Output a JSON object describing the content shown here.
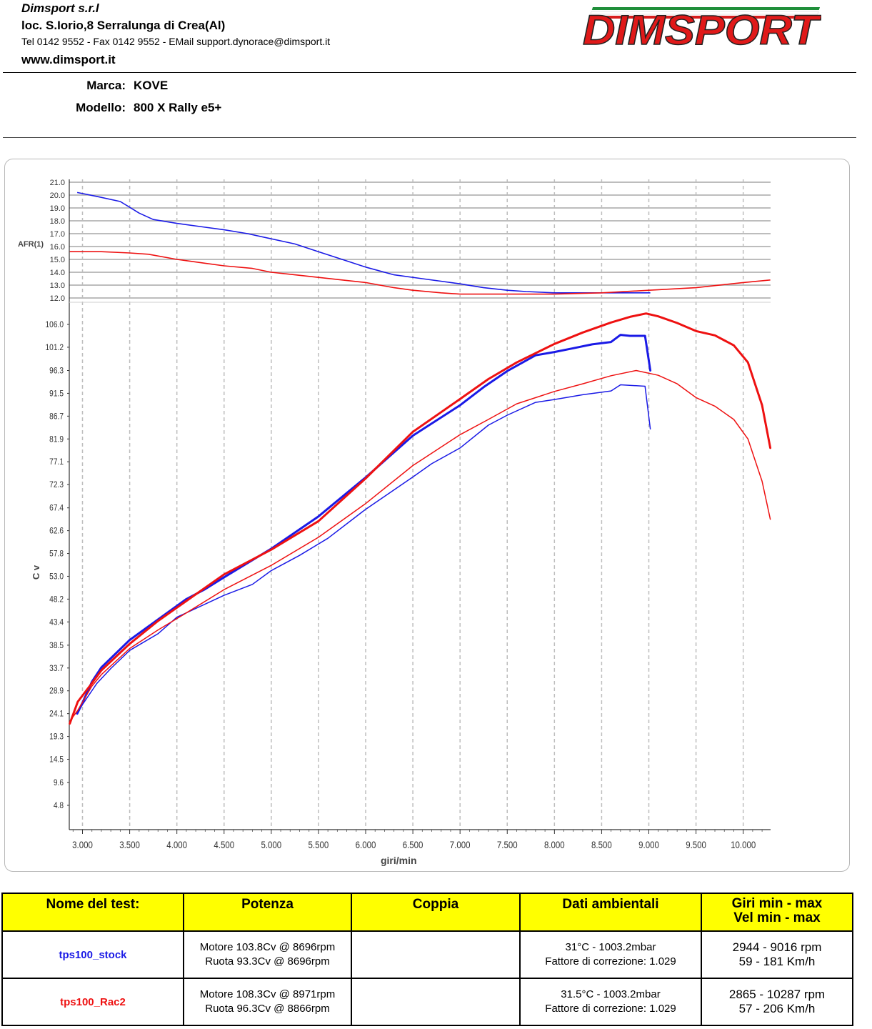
{
  "header": {
    "company": "Dimsport s.r.l",
    "address": "loc. S.Iorio,8 Serralunga di Crea(Al)",
    "contacts": "Tel 0142 9552 - Fax 0142 9552 - EMail support.dynorace@dimsport.it",
    "website": "www.dimsport.it",
    "logo_text": "DIMSPORT"
  },
  "vehicle": {
    "marca_label": "Marca:",
    "marca": "KOVE",
    "modello_label": "Modello:",
    "modello": "800 X Rally e5+"
  },
  "colors": {
    "stock": "#1a1ae6",
    "rac2": "#ee1111",
    "grid": "#bdbdbd",
    "table_header": "#ffff00"
  },
  "chart_data": {
    "type": "line",
    "xlabel": "giri/min",
    "x_ticks": [
      "3.000",
      "3.500",
      "4.000",
      "4.500",
      "5.000",
      "5.500",
      "6.000",
      "6.500",
      "7.000",
      "7.500",
      "8.000",
      "8.500",
      "9.000",
      "9.500",
      "10.000"
    ],
    "x_tick_values": [
      3000,
      3500,
      4000,
      4500,
      5000,
      5500,
      6000,
      6500,
      7000,
      7500,
      8000,
      8500,
      9000,
      9500,
      10000
    ],
    "xlim": [
      2860,
      10290
    ],
    "afr_panel": {
      "ylabel": "AFR(1)",
      "ylim": [
        12.0,
        21.0
      ],
      "y_ticks": [
        "21.0",
        "20.0",
        "19.0",
        "18.0",
        "17.0",
        "16.0",
        "15.0",
        "14.0",
        "13.0",
        "12.0"
      ],
      "y_tick_values": [
        21,
        20,
        19,
        18,
        17,
        16,
        15,
        14,
        13,
        12
      ],
      "series": [
        {
          "name": "tps100_stock",
          "color": "#1a1ae6",
          "points": [
            [
              2944,
              20.2
            ],
            [
              3150,
              19.9
            ],
            [
              3400,
              19.5
            ],
            [
              3600,
              18.6
            ],
            [
              3750,
              18.1
            ],
            [
              4000,
              17.8
            ],
            [
              4300,
              17.5
            ],
            [
              4500,
              17.3
            ],
            [
              4750,
              17.0
            ],
            [
              5000,
              16.6
            ],
            [
              5250,
              16.2
            ],
            [
              5500,
              15.6
            ],
            [
              5750,
              15.0
            ],
            [
              6000,
              14.4
            ],
            [
              6300,
              13.8
            ],
            [
              6600,
              13.5
            ],
            [
              7000,
              13.1
            ],
            [
              7250,
              12.8
            ],
            [
              7500,
              12.6
            ],
            [
              7700,
              12.5
            ],
            [
              8000,
              12.4
            ],
            [
              9016,
              12.4
            ]
          ]
        },
        {
          "name": "tps100_Rac2",
          "color": "#ee1111",
          "points": [
            [
              2865,
              15.6
            ],
            [
              3200,
              15.6
            ],
            [
              3500,
              15.5
            ],
            [
              3700,
              15.4
            ],
            [
              4000,
              15.0
            ],
            [
              4300,
              14.7
            ],
            [
              4500,
              14.5
            ],
            [
              4800,
              14.3
            ],
            [
              5000,
              14.0
            ],
            [
              5250,
              13.8
            ],
            [
              5500,
              13.6
            ],
            [
              5750,
              13.4
            ],
            [
              6000,
              13.2
            ],
            [
              6300,
              12.8
            ],
            [
              6500,
              12.6
            ],
            [
              6800,
              12.4
            ],
            [
              7000,
              12.3
            ],
            [
              7500,
              12.3
            ],
            [
              8000,
              12.3
            ],
            [
              8500,
              12.4
            ],
            [
              9000,
              12.6
            ],
            [
              9500,
              12.8
            ],
            [
              10000,
              13.2
            ],
            [
              10287,
              13.4
            ]
          ]
        }
      ]
    },
    "power_panel": {
      "ylabel": "C v",
      "ylim": [
        0,
        108.3
      ],
      "y_ticks": [
        "106.0",
        "101.2",
        "96.3",
        "91.5",
        "86.7",
        "81.9",
        "77.1",
        "72.3",
        "67.4",
        "62.6",
        "57.8",
        "53.0",
        "48.2",
        "43.4",
        "38.5",
        "33.7",
        "28.9",
        "24.1",
        "19.3",
        "14.5",
        "9.6",
        "4.8"
      ],
      "y_tick_values": [
        106.0,
        101.2,
        96.3,
        91.5,
        86.7,
        81.9,
        77.1,
        72.3,
        67.4,
        62.6,
        57.8,
        53.0,
        48.2,
        43.4,
        38.5,
        33.7,
        28.9,
        24.1,
        19.3,
        14.5,
        9.6,
        4.8
      ],
      "series": [
        {
          "name": "tps100_stock Motore",
          "color": "#1a1ae6",
          "width": 3,
          "points": [
            [
              2944,
              24.1
            ],
            [
              3000,
              26.4
            ],
            [
              3100,
              30.8
            ],
            [
              3200,
              33.8
            ],
            [
              3500,
              39.6
            ],
            [
              3800,
              43.9
            ],
            [
              4100,
              48.2
            ],
            [
              4300,
              50.3
            ],
            [
              4500,
              52.8
            ],
            [
              5000,
              58.8
            ],
            [
              5500,
              65.6
            ],
            [
              6000,
              73.8
            ],
            [
              6500,
              82.6
            ],
            [
              7000,
              89.0
            ],
            [
              7250,
              92.8
            ],
            [
              7500,
              96.2
            ],
            [
              7800,
              99.5
            ],
            [
              8000,
              100.2
            ],
            [
              8200,
              101.0
            ],
            [
              8400,
              101.8
            ],
            [
              8600,
              102.3
            ],
            [
              8700,
              103.8
            ],
            [
              8800,
              103.6
            ],
            [
              8960,
              103.6
            ],
            [
              9016,
              96.3
            ]
          ]
        },
        {
          "name": "tps100_stock Ruota",
          "color": "#1a1ae6",
          "width": 1.5,
          "points": [
            [
              2944,
              24.1
            ],
            [
              3000,
              26.0
            ],
            [
              3150,
              30.4
            ],
            [
              3300,
              33.6
            ],
            [
              3500,
              37.4
            ],
            [
              3800,
              40.9
            ],
            [
              4000,
              44.4
            ],
            [
              4500,
              49.0
            ],
            [
              4800,
              51.3
            ],
            [
              5000,
              54.2
            ],
            [
              5300,
              57.4
            ],
            [
              5600,
              61.0
            ],
            [
              6000,
              67.1
            ],
            [
              6500,
              73.9
            ],
            [
              6700,
              76.7
            ],
            [
              7000,
              80.0
            ],
            [
              7300,
              84.8
            ],
            [
              7500,
              86.9
            ],
            [
              7800,
              89.6
            ],
            [
              8000,
              90.2
            ],
            [
              8300,
              91.2
            ],
            [
              8600,
              92.0
            ],
            [
              8700,
              93.3
            ],
            [
              8960,
              93.0
            ],
            [
              9016,
              84.0
            ]
          ]
        },
        {
          "name": "tps100_Rac2 Motore",
          "color": "#ee1111",
          "width": 3,
          "points": [
            [
              2865,
              22.0
            ],
            [
              2950,
              26.6
            ],
            [
              3100,
              30.5
            ],
            [
              3200,
              33.2
            ],
            [
              3500,
              38.8
            ],
            [
              3800,
              43.6
            ],
            [
              4100,
              47.8
            ],
            [
              4500,
              53.4
            ],
            [
              5000,
              58.6
            ],
            [
              5500,
              64.6
            ],
            [
              6000,
              73.6
            ],
            [
              6500,
              83.4
            ],
            [
              7000,
              90.3
            ],
            [
              7300,
              94.5
            ],
            [
              7600,
              98.0
            ],
            [
              8000,
              101.9
            ],
            [
              8300,
              104.3
            ],
            [
              8600,
              106.4
            ],
            [
              8800,
              107.6
            ],
            [
              8971,
              108.3
            ],
            [
              9100,
              107.7
            ],
            [
              9300,
              106.3
            ],
            [
              9500,
              104.6
            ],
            [
              9700,
              103.7
            ],
            [
              9900,
              101.6
            ],
            [
              10050,
              98.0
            ],
            [
              10200,
              89.0
            ],
            [
              10287,
              80.0
            ]
          ]
        },
        {
          "name": "tps100_Rac2 Ruota",
          "color": "#ee1111",
          "width": 1.5,
          "points": [
            [
              2865,
              22.5
            ],
            [
              2950,
              24.8
            ],
            [
              3100,
              29.9
            ],
            [
              3200,
              32.3
            ],
            [
              3500,
              37.8
            ],
            [
              3800,
              41.7
            ],
            [
              4100,
              45.3
            ],
            [
              4500,
              50.2
            ],
            [
              5000,
              55.3
            ],
            [
              5500,
              61.2
            ],
            [
              6000,
              68.3
            ],
            [
              6500,
              76.3
            ],
            [
              7000,
              82.8
            ],
            [
              7300,
              86.0
            ],
            [
              7600,
              89.3
            ],
            [
              8000,
              91.9
            ],
            [
              8300,
              93.5
            ],
            [
              8600,
              95.2
            ],
            [
              8866,
              96.3
            ],
            [
              9100,
              95.3
            ],
            [
              9300,
              93.5
            ],
            [
              9500,
              90.6
            ],
            [
              9700,
              88.8
            ],
            [
              9900,
              86.0
            ],
            [
              10050,
              81.9
            ],
            [
              10200,
              73.0
            ],
            [
              10287,
              65.0
            ]
          ]
        }
      ]
    }
  },
  "table": {
    "headers": [
      "Nome del test:",
      "Potenza",
      "Coppia",
      "Dati ambientali",
      "Giri min - max",
      "Vel  min - max"
    ],
    "rows": [
      {
        "name": "tps100_stock",
        "color": "#1a1ae6",
        "potenza_1": "Motore 103.8Cv @ 8696rpm",
        "potenza_2": "Ruota 93.3Cv @ 8696rpm",
        "coppia": "",
        "ambient_1": "31°C - 1003.2mbar",
        "ambient_2": "Fattore di correzione: 1.029",
        "giri": "2944 - 9016 rpm",
        "vel": "59 - 181 Km/h"
      },
      {
        "name": "tps100_Rac2",
        "color": "#ee1111",
        "potenza_1": "Motore 108.3Cv @ 8971rpm",
        "potenza_2": "Ruota 96.3Cv @ 8866rpm",
        "coppia": "",
        "ambient_1": "31.5°C - 1003.2mbar",
        "ambient_2": "Fattore di correzione: 1.029",
        "giri": "2865 - 10287 rpm",
        "vel": "57 - 206 Km/h"
      }
    ]
  }
}
